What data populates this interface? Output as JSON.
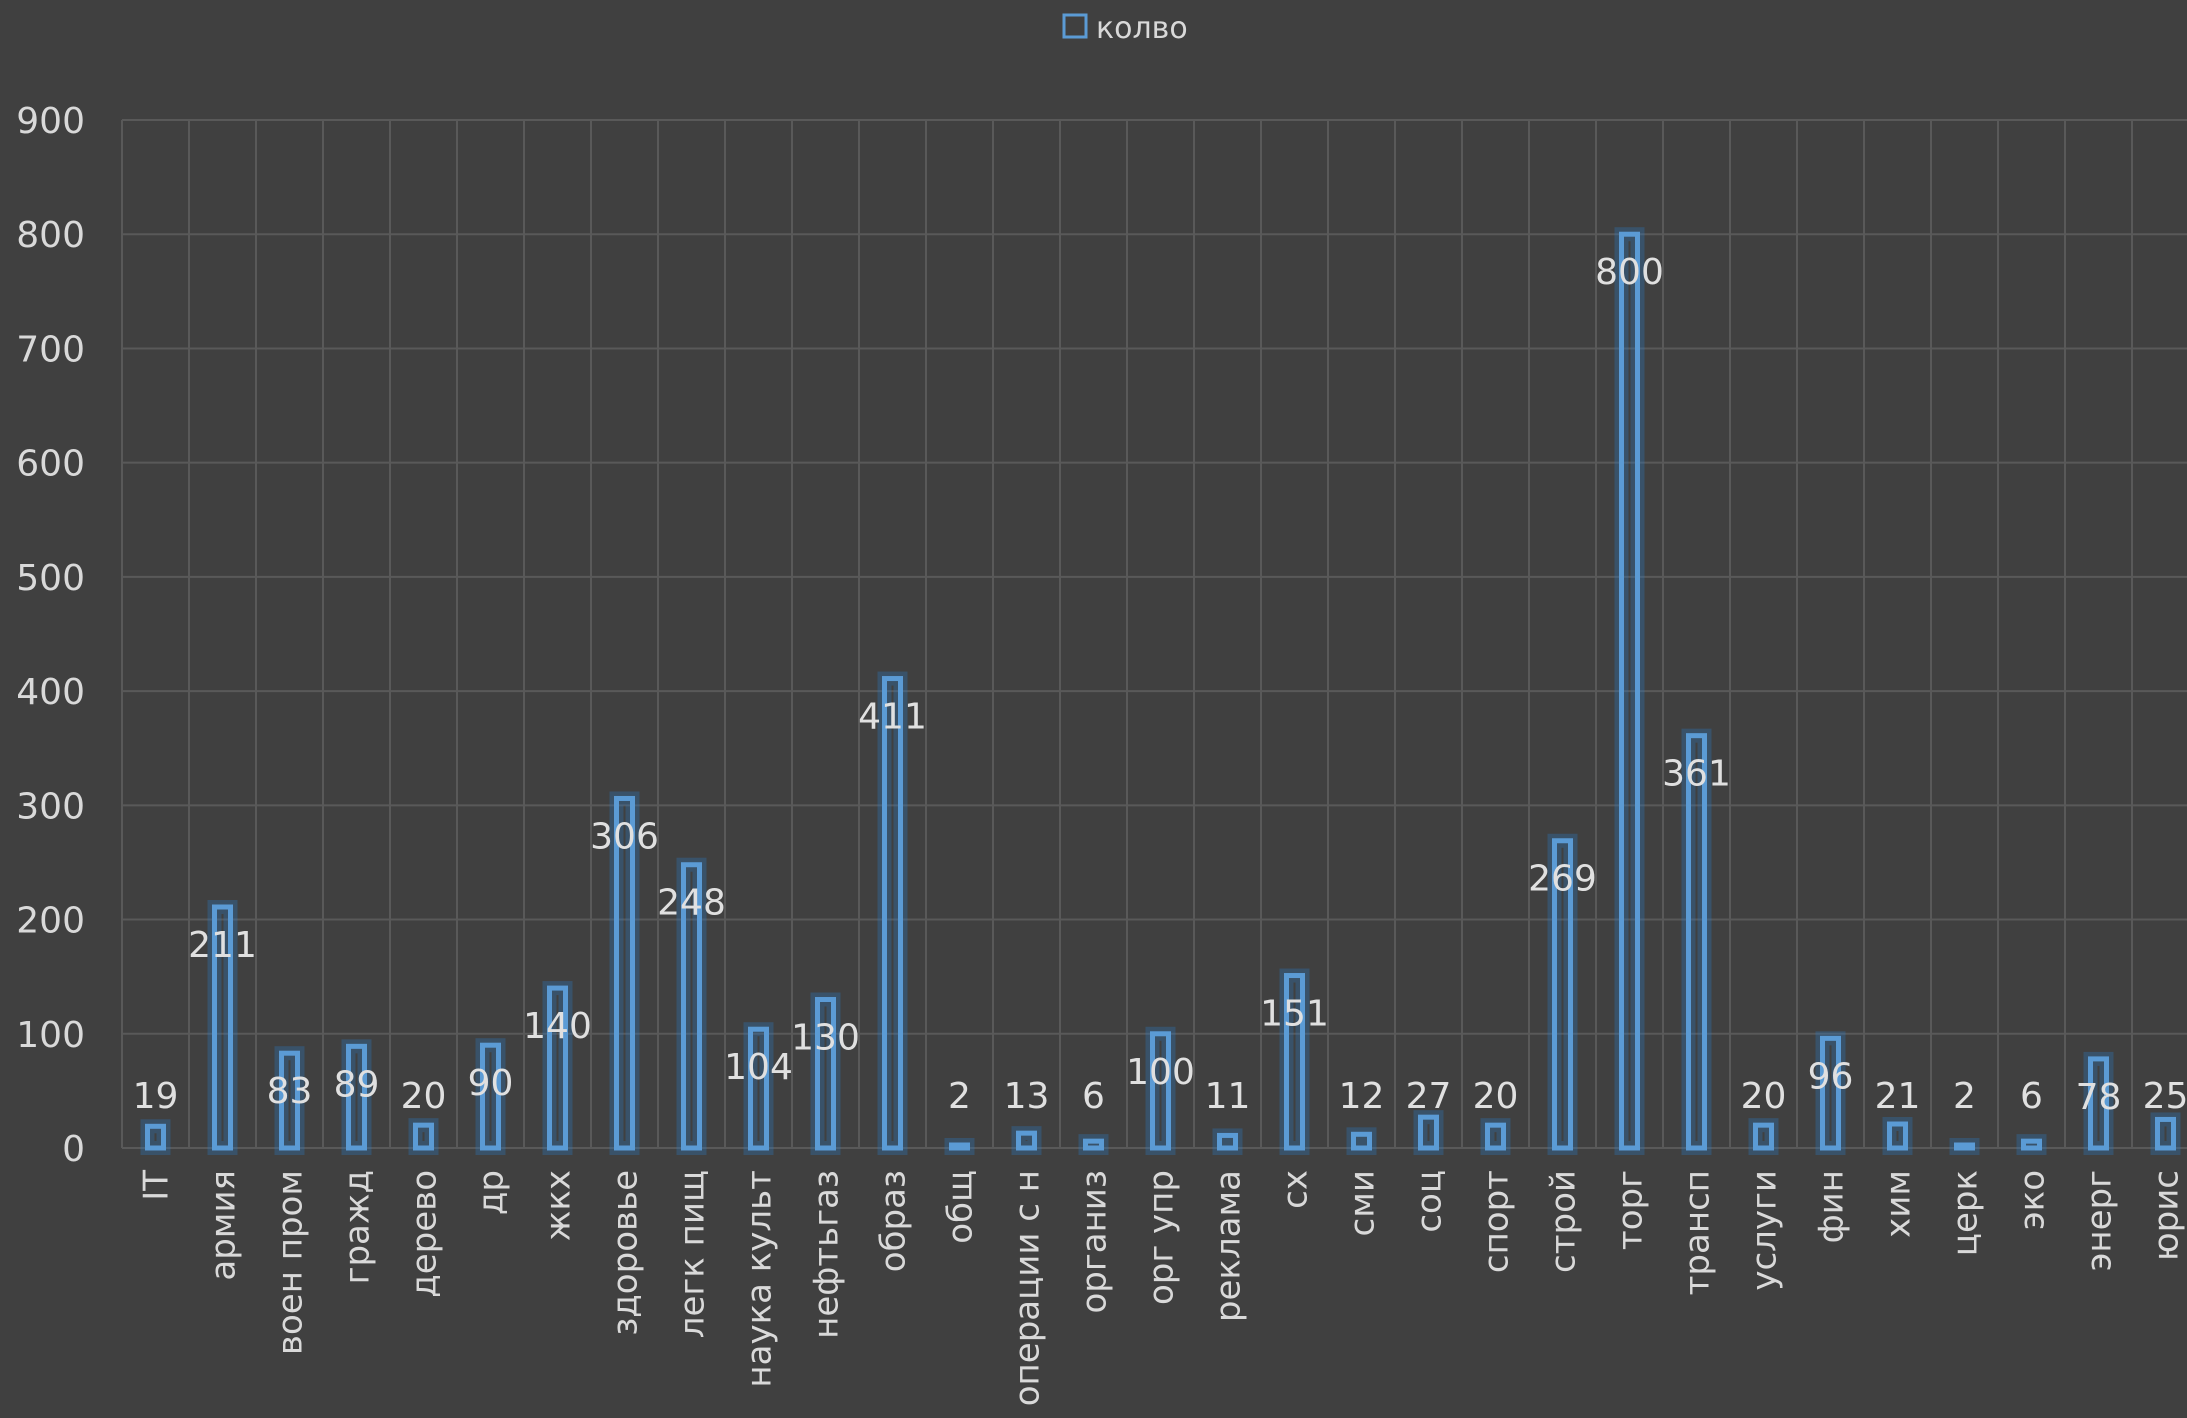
{
  "chart_data": {
    "type": "bar",
    "legend": {
      "position": "top",
      "entries": [
        "колво"
      ]
    },
    "ylim": [
      0,
      900
    ],
    "yticks": [
      0,
      100,
      200,
      300,
      400,
      500,
      600,
      700,
      800,
      900
    ],
    "grid": true,
    "categories": [
      "IT",
      "армия",
      "воен пром",
      "гражд",
      "дерево",
      "др",
      "жкх",
      "здоровье",
      "легк пищ",
      "наука культ",
      "нефтьгаз",
      "образ",
      "общ",
      "операции с н",
      "организ",
      "орг упр",
      "реклама",
      "сх",
      "сми",
      "соц",
      "спорт",
      "строй",
      "торг",
      "трансп",
      "услуги",
      "фин",
      "хим",
      "церк",
      "эко",
      "энерг",
      "юрис"
    ],
    "series": [
      {
        "name": "колво",
        "values": [
          19,
          211,
          83,
          89,
          20,
          90,
          140,
          306,
          248,
          104,
          130,
          411,
          2,
          13,
          6,
          100,
          11,
          151,
          12,
          27,
          20,
          269,
          800,
          361,
          20,
          96,
          21,
          2,
          6,
          78,
          25
        ]
      }
    ],
    "colors": {
      "background": "#404040",
      "bar_stroke": "#5b9bd5",
      "grid": "#595959",
      "text": "#d9d9d9"
    }
  }
}
